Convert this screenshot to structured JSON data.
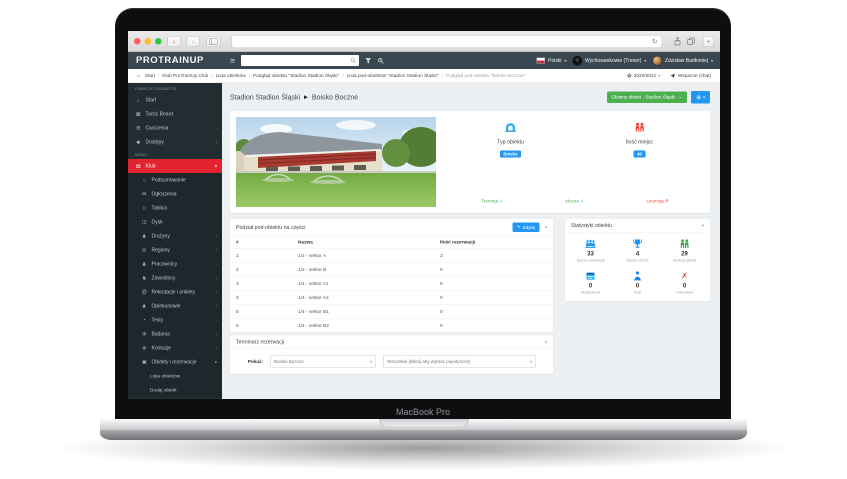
{
  "device": {
    "label": "MacBook Pro"
  },
  "colors": {
    "accent_blue": "#2196f3",
    "accent_green": "#4caf50",
    "active_red": "#e12430",
    "status_red": "#f44336",
    "header_bg": "#3a4750",
    "sidebar_bg": "#222d32",
    "traffic_close": "#ff5f57",
    "traffic_min": "#febc2e",
    "traffic_zoom": "#28c840"
  },
  "app": {
    "logo": "PROTRAINUP",
    "language": "Polski",
    "role": "Wychowankowie (Trener)",
    "user": "Zdzisław Bartłomiej"
  },
  "breadcrumb": {
    "items": [
      "Start",
      "Klub ProTrainUp Club",
      "Lista obiektów",
      "Podgląd obiektu \"Stadion Stadion Śląski\"",
      "Lista pod-obiektów \"Stadion Stadion Śląski\"",
      "Podgląd pod-obiektu \"Boisko Boczne\""
    ],
    "season": "2020/2021",
    "support": "Wsparcie (chat)"
  },
  "sidebar": {
    "entries": [
      {
        "type": "header",
        "label": "FUNKCJE OSOBISTE"
      },
      {
        "id": "start",
        "label": "Start",
        "glyph": "⌂",
        "icon": "home-icon"
      },
      {
        "id": "tactic-board",
        "label": "Tactic Board",
        "glyph": "▦",
        "icon": "tactic-board-icon"
      },
      {
        "id": "cwiczenia",
        "label": "Ćwiczenia",
        "glyph": "⊞",
        "icon": "exercises-icon",
        "chev": "right"
      },
      {
        "id": "dostepy",
        "label": "Dostępy",
        "glyph": "◆",
        "icon": "access-icon",
        "chev": "right"
      },
      {
        "type": "header",
        "label": "MENU"
      },
      {
        "id": "klub",
        "label": "Klub",
        "glyph": "▤",
        "icon": "club-icon",
        "chev": "down",
        "active": true
      },
      {
        "id": "podsumowanie",
        "label": "Podsumowanie",
        "glyph": "⌂",
        "icon": "summary-icon",
        "type": "sub"
      },
      {
        "id": "ogloszenia",
        "label": "Ogłoszenia",
        "glyph": "✉",
        "icon": "announcements-icon",
        "type": "sub"
      },
      {
        "id": "tablica",
        "label": "Tablica",
        "glyph": "▯",
        "icon": "bulletin-board-icon",
        "type": "sub"
      },
      {
        "id": "dysk",
        "label": "Dysk",
        "glyph": "◫",
        "icon": "disk-icon",
        "type": "sub"
      },
      {
        "id": "druzyny",
        "label": "Drużyny",
        "glyph": "♟",
        "icon": "teams-icon",
        "type": "sub",
        "chev": "right"
      },
      {
        "id": "regiony",
        "label": "Regiony",
        "glyph": "◎",
        "icon": "regions-icon",
        "type": "sub",
        "chev": "right"
      },
      {
        "id": "pracownicy",
        "label": "Pracownicy",
        "glyph": "♟",
        "icon": "staff-icon",
        "type": "sub",
        "chev": "right"
      },
      {
        "id": "zawodnicy",
        "label": "Zawodnicy",
        "glyph": "♞",
        "icon": "players-icon",
        "type": "sub",
        "chev": "right"
      },
      {
        "id": "rekrutacje",
        "label": "Rekrutacje i ankiety",
        "glyph": "@",
        "icon": "recruitment-icon",
        "type": "sub",
        "chev": "right"
      },
      {
        "id": "opiekunowie",
        "label": "Opiekunowie",
        "glyph": "♟",
        "icon": "guardians-icon",
        "type": "sub",
        "chev": "right"
      },
      {
        "id": "testy",
        "label": "Testy",
        "glyph": "◔",
        "icon": "tests-icon",
        "type": "sub",
        "chev": "right"
      },
      {
        "id": "badania",
        "label": "Badania",
        "glyph": "⊕",
        "icon": "examinations-icon",
        "type": "sub",
        "chev": "right"
      },
      {
        "id": "kontuzje",
        "label": "Kontuzje",
        "glyph": "⊗",
        "icon": "injuries-icon",
        "type": "sub",
        "chev": "right"
      },
      {
        "id": "obiekty-i-rezerwacje",
        "label": "Obiekty i rezerwacje",
        "glyph": "▣",
        "icon": "facilities-icon",
        "type": "sub",
        "chev": "down"
      },
      {
        "id": "lista-obiektow",
        "label": "Lista obiektów",
        "type": "subsub"
      },
      {
        "id": "dodaj-obiekt",
        "label": "Dodaj obiekt",
        "type": "subsub"
      }
    ]
  },
  "page": {
    "title_main": "Stadion Stadion Śląski",
    "title_separator": "▶",
    "title_sub": "Boisko Boczne",
    "main_object_button": "Główny obiekt : Stadion Śląski",
    "main_object_arrow": "→"
  },
  "overview": {
    "type_label": "Typ obiektu",
    "type_value": "Boisko",
    "seats_label": "Ilość miejsc",
    "seats_value": "40",
    "flags": [
      {
        "label": "Treningi",
        "mark": "✓",
        "state": "ok"
      },
      {
        "label": "Mecze",
        "mark": "✓",
        "state": "ok"
      },
      {
        "label": "Licencja",
        "mark": "✗",
        "state": "bad"
      }
    ]
  },
  "parts_table": {
    "title": "Podział pod-obiektu na części",
    "edit_button": "Edytuj",
    "edit_icon": "✎",
    "columns": [
      "#",
      "Nazwa",
      "Ilość rezerwacji"
    ],
    "rows": [
      [
        "1",
        "1/2 - sektor A",
        "3"
      ],
      [
        "2",
        "1/2 - sektor B",
        "0"
      ],
      [
        "3",
        "1/4 - sektor A1",
        "0"
      ],
      [
        "4",
        "1/4 - sektor A2",
        "0"
      ],
      [
        "5",
        "1/4 - sektor B1",
        "0"
      ],
      [
        "6",
        "1/4 - sektor B2",
        "0"
      ]
    ]
  },
  "stats": {
    "title": "Statystyki obiektu",
    "items": [
      {
        "value": "33",
        "label": "Suma rezerwacji",
        "icon": "users-group-icon"
      },
      {
        "value": "4",
        "label": "Mecze (12%)",
        "icon": "trophy-icon"
      },
      {
        "value": "29",
        "label": "treningi (88%)",
        "icon": "training-users-icon"
      },
      {
        "value": "0",
        "label": "Wydarzenia",
        "icon": "calendar-icon"
      },
      {
        "value": "0",
        "label": "Inne",
        "icon": "person-icon"
      },
      {
        "value": "0",
        "label": "Odwołane",
        "icon": "cancel-icon",
        "mark": "✗"
      }
    ]
  },
  "schedule": {
    "title": "Terminarz rezerwacji",
    "show_label": "Pokaż:",
    "select1": "Boisko Boczne",
    "select2": "Wszystkie (kliknij aby wybrać pojedyncze)"
  }
}
